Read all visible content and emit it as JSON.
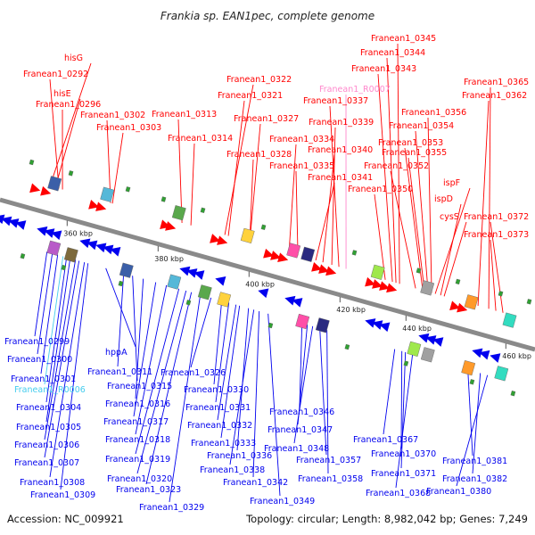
{
  "title": "Frankia sp. EAN1pec, complete genome",
  "footer": {
    "accession": "Accession: NC_009921",
    "summary": "Topology: circular; Length: 8,982,042 bp; Genes: 7,249"
  },
  "colors": {
    "forward": "#ff0000",
    "reverse": "#0000ee",
    "rna": "#ff88cc",
    "rna_reverse": "#44ccee",
    "backbone": "#8a8a8a"
  },
  "ticks": [
    "360 kbp",
    "380 kbp",
    "400 kbp",
    "420 kbp",
    "440 kbp",
    "460 kbp"
  ],
  "top_labels": [
    "hisG",
    "Franean1_0292",
    "hisE",
    "Franean1_0296",
    "Franean1_0302",
    "Franean1_0303",
    "Franean1_0313",
    "Franean1_0314",
    "Franean1_0322",
    "Franean1_0321",
    "Franean1_0327",
    "Franean1_0328",
    "Franean1_0334",
    "Franean1_0335",
    "Franean1_R0007",
    "Franean1_0337",
    "Franean1_0339",
    "Franean1_0340",
    "Franean1_0341",
    "Franean1_0345",
    "Franean1_0344",
    "Franean1_0343",
    "Franean1_0350",
    "Franean1_0365",
    "Franean1_0362",
    "Franean1_0356",
    "Franean1_0354",
    "Franean1_0353",
    "Franean1_0355",
    "Franean1_0352",
    "ispF",
    "ispD",
    "cysS",
    "Franean1_0372",
    "Franean1_0373"
  ],
  "bottom_labels": [
    "Franean1_0299",
    "Franean1_0300",
    "Franean1_0301",
    "Franean1_R0006",
    "Franean1_0304",
    "Franean1_0305",
    "Franean1_0306",
    "Franean1_0307",
    "Franean1_0308",
    "Franean1_0309",
    "hppA",
    "Franean1_0311",
    "Franean1_0315",
    "Franean1_0316",
    "Franean1_0317",
    "Franean1_0318",
    "Franean1_0319",
    "Franean1_0320",
    "Franean1_0323",
    "Franean1_0329",
    "Franean1_0326",
    "Franean1_0330",
    "Franean1_0331",
    "Franean1_0332",
    "Franean1_0333",
    "Franean1_0336",
    "Franean1_0338",
    "Franean1_0342",
    "Franean1_0349",
    "Franean1_0346",
    "Franean1_0347",
    "Franean1_0348",
    "Franean1_0357",
    "Franean1_0358",
    "Franean1_0367",
    "Franean1_0370",
    "Franean1_0371",
    "Franean1_0368",
    "Franean1_0381",
    "Franean1_0382",
    "Franean1_0380"
  ]
}
